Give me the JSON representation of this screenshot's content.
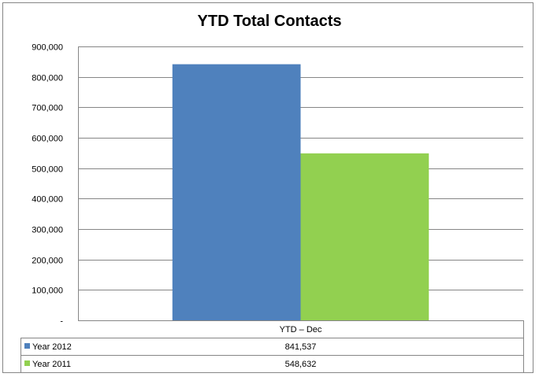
{
  "chart_data": {
    "type": "bar",
    "title": "YTD Total Contacts",
    "categories": [
      "YTD – Dec"
    ],
    "series": [
      {
        "name": "Year 2012",
        "values": [
          841537
        ],
        "value_labels": [
          "841,537"
        ],
        "color": "#4F81BD"
      },
      {
        "name": "Year 2011",
        "values": [
          548632
        ],
        "value_labels": [
          "548,632"
        ],
        "color": "#92D050"
      }
    ],
    "ylim": [
      0,
      900000
    ],
    "yticks": [
      0,
      100000,
      200000,
      300000,
      400000,
      500000,
      600000,
      700000,
      800000,
      900000
    ],
    "ytick_labels": [
      "-",
      "100,000",
      "200,000",
      "300,000",
      "400,000",
      "500,000",
      "600,000",
      "700,000",
      "800,000",
      "900,000"
    ],
    "grid": true,
    "legend": "data-table-below",
    "xlabel": "",
    "ylabel": ""
  }
}
